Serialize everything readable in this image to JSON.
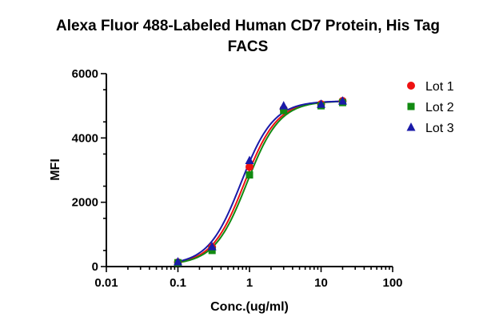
{
  "chart_data": {
    "type": "scatter",
    "title": [
      "Alexa Fluor 488-Labeled Human CD7 Protein, His Tag",
      "FACS"
    ],
    "xlabel": "Conc.(ug/ml)",
    "ylabel": "MFI",
    "xscale": "log",
    "xlim": [
      0.01,
      100
    ],
    "ylim": [
      0,
      6000
    ],
    "x_ticks": [
      0.01,
      0.1,
      1,
      10,
      100
    ],
    "x_tick_labels": [
      "0.01",
      "0.1",
      "1",
      "10",
      "100"
    ],
    "y_ticks": [
      0,
      2000,
      4000,
      6000
    ],
    "y_tick_labels": [
      "0",
      "2000",
      "4000",
      "6000"
    ],
    "legend_position": "top-right",
    "series": [
      {
        "name": "Lot 1",
        "marker": "circle",
        "color": "#ee1111",
        "x": [
          0.1,
          0.3,
          1,
          3,
          10,
          20
        ],
        "y": [
          130,
          600,
          3100,
          4900,
          5050,
          5150
        ],
        "fit": {
          "bottom": 50,
          "top": 5150,
          "ec50": 0.85,
          "hill": 1.9
        }
      },
      {
        "name": "Lot 2",
        "marker": "square",
        "color": "#128a12",
        "x": [
          0.1,
          0.3,
          1,
          3,
          10,
          20
        ],
        "y": [
          120,
          500,
          2850,
          4850,
          5000,
          5100
        ],
        "fit": {
          "bottom": 50,
          "top": 5150,
          "ec50": 0.92,
          "hill": 1.9
        }
      },
      {
        "name": "Lot 3",
        "marker": "triangle",
        "color": "#1a1aa8",
        "x": [
          0.1,
          0.3,
          1,
          3,
          10,
          20
        ],
        "y": [
          150,
          620,
          3300,
          5000,
          5050,
          5150
        ],
        "fit": {
          "bottom": 50,
          "top": 5150,
          "ec50": 0.76,
          "hill": 1.9
        }
      }
    ]
  }
}
